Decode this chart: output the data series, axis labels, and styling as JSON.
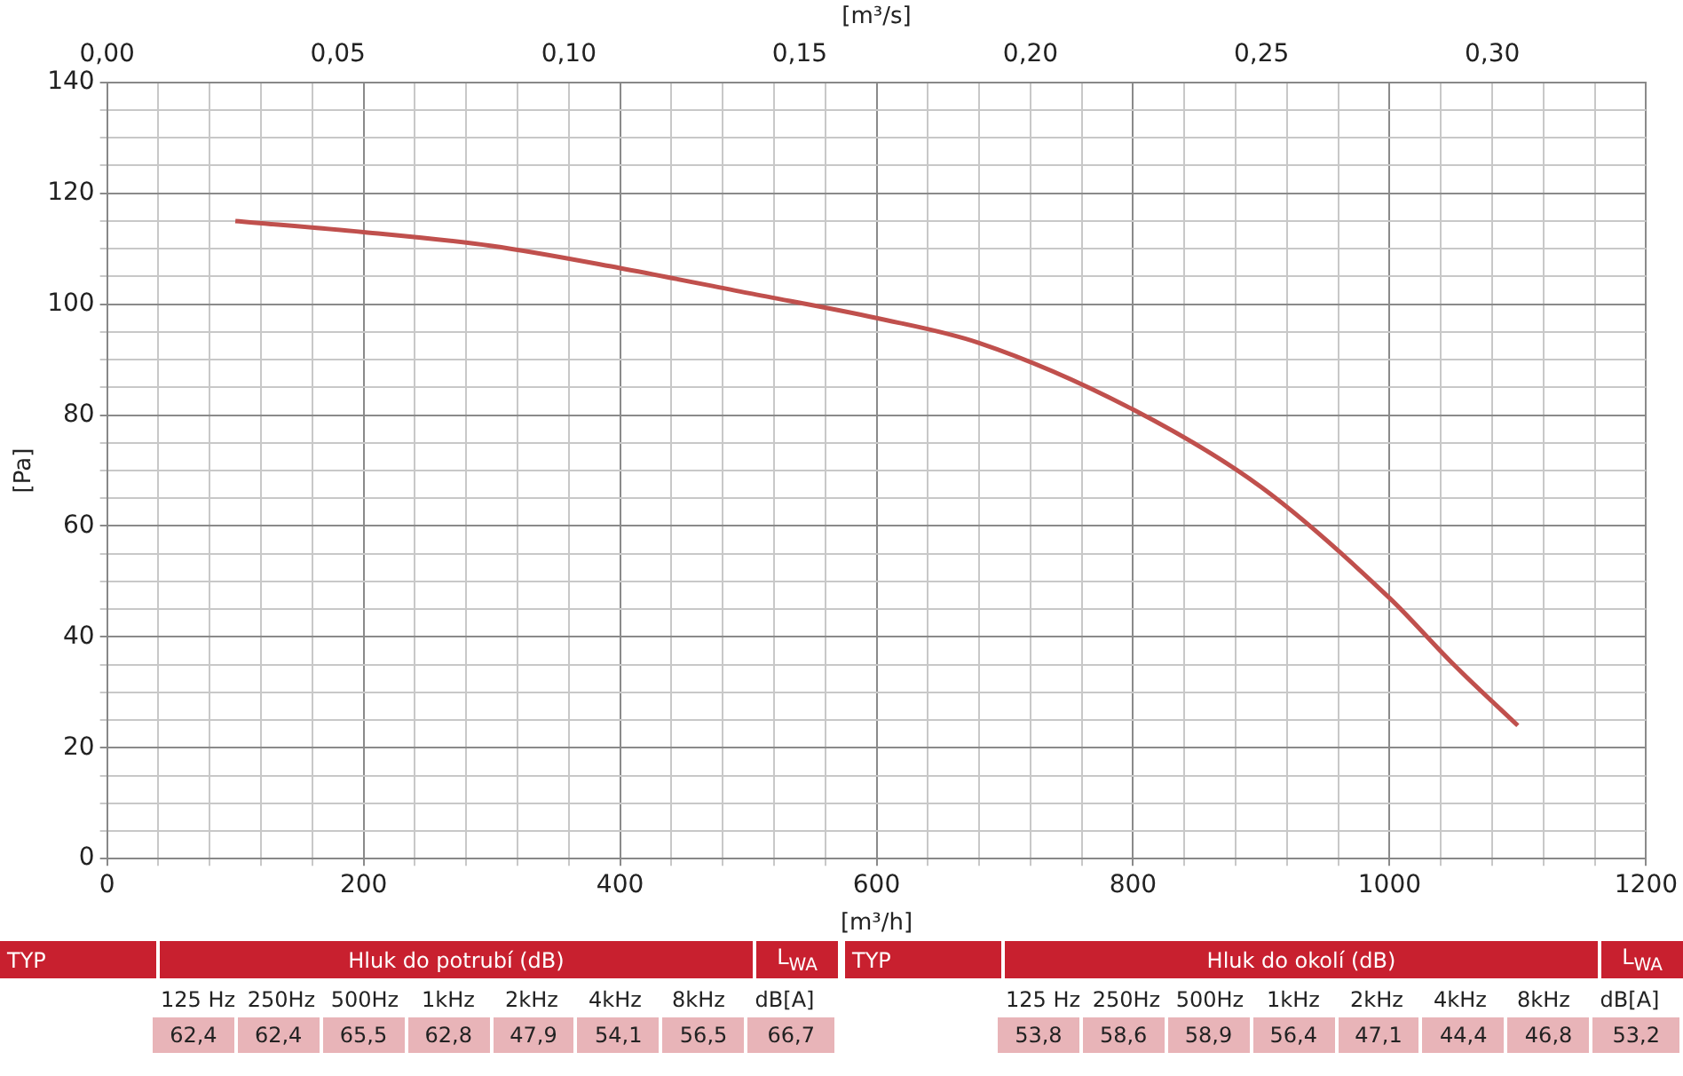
{
  "chart_data": [
    {
      "type": "line",
      "xlabel": "[m³/h]",
      "x2label": "[m³/s]",
      "ylabel": "[Pa]",
      "grid": true,
      "marker": "none",
      "color": "#c0504d",
      "x": [
        100,
        200,
        300,
        400,
        500,
        600,
        680,
        800,
        900,
        1000,
        1050,
        1100
      ],
      "values": [
        115,
        113,
        110.5,
        106.5,
        102,
        97.5,
        93,
        81,
        67,
        47,
        35,
        24
      ],
      "xlim": [
        0,
        1200
      ],
      "xticks": [
        0,
        {
          "value": 40,
          "label": null
        },
        {
          "value": 80,
          "label": null
        },
        {
          "value": 120,
          "label": null
        },
        {
          "value": 160,
          "label": null
        },
        200,
        {
          "value": 240,
          "label": null
        },
        {
          "value": 280,
          "label": null
        },
        {
          "value": 320,
          "label": null
        },
        {
          "value": 360,
          "label": null
        },
        400,
        {
          "value": 440,
          "label": null
        },
        {
          "value": 480,
          "label": null
        },
        {
          "value": 520,
          "label": null
        },
        {
          "value": 560,
          "label": null
        },
        600,
        {
          "value": 640,
          "label": null
        },
        {
          "value": 680,
          "label": null
        },
        {
          "value": 720,
          "label": null
        },
        {
          "value": 760,
          "label": null
        },
        800,
        {
          "value": 840,
          "label": null
        },
        {
          "value": 880,
          "label": null
        },
        {
          "value": 920,
          "label": null
        },
        {
          "value": 960,
          "label": null
        },
        1000,
        {
          "value": 1040,
          "label": null
        },
        {
          "value": 1080,
          "label": null
        },
        {
          "value": 1120,
          "label": null
        },
        {
          "value": 1160,
          "label": null
        },
        1200
      ],
      "ylim": [
        0,
        140
      ],
      "yticks": [
        0,
        {
          "value": 5,
          "label": null
        },
        {
          "value": 10,
          "label": null
        },
        {
          "value": 15,
          "label": null
        },
        20,
        {
          "value": 25,
          "label": null
        },
        {
          "value": 30,
          "label": null
        },
        {
          "value": 35,
          "label": null
        },
        40,
        {
          "value": 45,
          "label": null
        },
        {
          "value": 50,
          "label": null
        },
        {
          "value": 55,
          "label": null
        },
        60,
        {
          "value": 65,
          "label": null
        },
        {
          "value": 70,
          "label": null
        },
        {
          "value": 75,
          "label": null
        },
        80,
        {
          "value": 85,
          "label": null
        },
        {
          "value": 90,
          "label": null
        },
        {
          "value": 95,
          "label": null
        },
        100,
        {
          "value": 105,
          "label": null
        },
        {
          "value": 110,
          "label": null
        },
        {
          "value": 115,
          "label": null
        },
        120,
        {
          "value": 125,
          "label": null
        },
        {
          "value": 130,
          "label": null
        },
        {
          "value": 135,
          "label": null
        },
        140
      ],
      "x2lim": [
        0,
        0.3333
      ],
      "x2ticks": [
        {
          "value": 0,
          "label": "0,00"
        },
        {
          "value": 0.05,
          "label": "0,05"
        },
        {
          "value": 0.1,
          "label": "0,10"
        },
        {
          "value": 0.15,
          "label": "0,15"
        },
        {
          "value": 0.2,
          "label": "0,20"
        },
        {
          "value": 0.25,
          "label": "0,25"
        },
        {
          "value": 0.3,
          "label": "0,30"
        }
      ]
    },
    {
      "type": "other",
      "title": "Hluk do potrubí (dB)",
      "annotations": [
        "TYP",
        "L$_{WA}$"
      ],
      "categories": [
        "125 Hz",
        "250Hz",
        "500Hz",
        "1kHz",
        "2kHz",
        "4kHz",
        "8kHz",
        "dB[A]"
      ],
      "values": [
        62.4,
        62.4,
        65.5,
        62.8,
        47.9,
        54.1,
        56.5,
        66.7
      ],
      "value_labels": [
        "62,4",
        "62,4",
        "65,5",
        "62,8",
        "47,9",
        "54,1",
        "56,5",
        "66,7"
      ]
    },
    {
      "type": "other",
      "title": "Hluk do okolí (dB)",
      "annotations": [
        "TYP",
        "L$_{WA}$"
      ],
      "categories": [
        "125 Hz",
        "250Hz",
        "500Hz",
        "1kHz",
        "2kHz",
        "4kHz",
        "8kHz",
        "dB[A]"
      ],
      "values": [
        53.8,
        58.6,
        58.9,
        56.4,
        47.1,
        44.4,
        46.8,
        53.2
      ],
      "value_labels": [
        "53,8",
        "58,6",
        "58,9",
        "56,4",
        "47,1",
        "44,4",
        "46,8",
        "53,2"
      ]
    }
  ]
}
